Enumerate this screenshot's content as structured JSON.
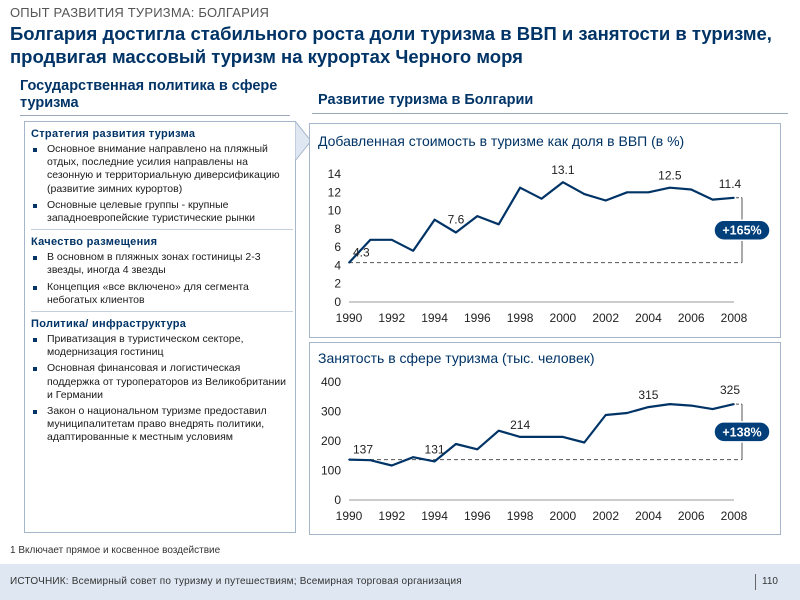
{
  "header": {
    "supertitle": "ОПЫТ РАЗВИТИЯ ТУРИЗМА: БОЛГАРИЯ",
    "title": "Болгария достигла стабильного роста доли туризма в ВВП и занятости в туризме, продвигая массовый туризм на курортах Черного моря"
  },
  "left_panel": {
    "heading": "Государственная политика в сфере туризма",
    "sections": [
      {
        "title": "Стратегия развития туризма",
        "items": [
          "Основное внимание направлено на пляжный отдых, последние усилия направлены на сезонную и территориальную диверсификацию (развитие зимних курортов)",
          "Основные целевые группы - крупные западноевропейские туристические рынки"
        ]
      },
      {
        "title": "Качество размещения",
        "items": [
          "В основном в пляжных зонах гостиницы 2-3 звезды, иногда 4 звезды",
          "Концепция «все включено» для сегмента небогатых клиентов"
        ]
      },
      {
        "title": "Политика/ инфраструктура",
        "items": [
          "Приватизация в туристическом секторе, модернизация гостиниц",
          "Основная финансовая и логистическая поддержка от туроператоров из Великобритании и Германии",
          "Закон о национальном туризме предоставил муниципалитетам право внедрять политики, адаптированные к местным условиям"
        ]
      }
    ]
  },
  "right_panel": {
    "heading": "Развитие туризма в Болгарии"
  },
  "chart_data": [
    {
      "type": "line",
      "title": "Добавленная стоимость в туризме как доля в ВВП  (в %)",
      "x": [
        1990,
        1991,
        1992,
        1993,
        1994,
        1995,
        1996,
        1997,
        1998,
        1999,
        2000,
        2001,
        2002,
        2003,
        2004,
        2005,
        2006,
        2007,
        2008
      ],
      "values": [
        4.3,
        6.8,
        6.8,
        5.6,
        9.0,
        7.6,
        9.4,
        8.5,
        12.5,
        11.3,
        13.1,
        11.8,
        11.1,
        12.0,
        12.0,
        12.5,
        12.3,
        11.2,
        11.4
      ],
      "data_labels": [
        {
          "x": 1990,
          "label": "4.3"
        },
        {
          "x": 1995,
          "label": "7.6"
        },
        {
          "x": 2000,
          "label": "13.1"
        },
        {
          "x": 2005,
          "label": "12.5"
        },
        {
          "x": 2008,
          "label": "11.4"
        }
      ],
      "xticks": [
        "1990",
        "1992",
        "1994",
        "1996",
        "1998",
        "2000",
        "2002",
        "2004",
        "2006",
        "2008"
      ],
      "yticks": [
        "0",
        "2",
        "4",
        "6",
        "8",
        "10",
        "12",
        "14"
      ],
      "ylim": [
        0,
        14
      ],
      "baseline": 4.3,
      "growth_label": "+165%",
      "line_color": "#003366",
      "badge_color": "#003f7a"
    },
    {
      "type": "line",
      "title": "Занятость в сфере туризма (тыс. человек)",
      "x": [
        1990,
        1991,
        1992,
        1993,
        1994,
        1995,
        1996,
        1997,
        1998,
        1999,
        2000,
        2001,
        2002,
        2003,
        2004,
        2005,
        2006,
        2007,
        2008
      ],
      "values": [
        137,
        135,
        117,
        145,
        131,
        190,
        172,
        235,
        214,
        214,
        214,
        195,
        288,
        295,
        315,
        325,
        320,
        308,
        325
      ],
      "data_labels": [
        {
          "x": 1990,
          "label": "137"
        },
        {
          "x": 1994,
          "label": "131"
        },
        {
          "x": 1998,
          "label": "214"
        },
        {
          "x": 2004,
          "label": "315"
        },
        {
          "x": 2008,
          "label": "325"
        }
      ],
      "xticks": [
        "1990",
        "1992",
        "1994",
        "1996",
        "1998",
        "2000",
        "2002",
        "2004",
        "2006",
        "2008"
      ],
      "yticks": [
        "0",
        "100",
        "200",
        "300",
        "400"
      ],
      "ylim": [
        0,
        400
      ],
      "baseline": 137,
      "growth_label": "+138%",
      "line_color": "#003366",
      "badge_color": "#003f7a"
    }
  ],
  "footnote": "1 Включает прямое и косвенное воздействие",
  "footer": {
    "source": "ИСТОЧНИК:  Всемирный совет по туризму и путешествиям;  Всемирная торговая организация",
    "page": "110"
  }
}
